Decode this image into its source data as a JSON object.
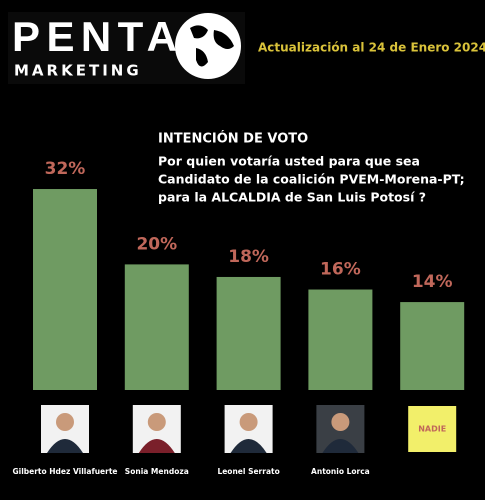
{
  "chart_data": {
    "type": "bar",
    "brand": "PENTA",
    "brand_sub": "MARKETING",
    "update": "Actualización al 24 de Enero 2024",
    "title": "INTENCIÓN DE VOTO",
    "subtitle": [
      "Por quien votaría usted para que sea",
      "Candidato de la coalición PVEM-Morena-PT;",
      "para la ALCALDIA de San Luis Potosí ?"
    ],
    "categories": [
      "Gilberto Hdez Villafuerte",
      "Sonia Mendoza",
      "Leonel Serrato",
      "Antonio Lorca",
      "NADIE"
    ],
    "values": [
      32,
      20,
      18,
      16,
      14
    ],
    "value_labels": [
      "32%",
      "20%",
      "18%",
      "16%",
      "14%"
    ],
    "color": "#6f9b62",
    "label_color": "#c0675a"
  }
}
